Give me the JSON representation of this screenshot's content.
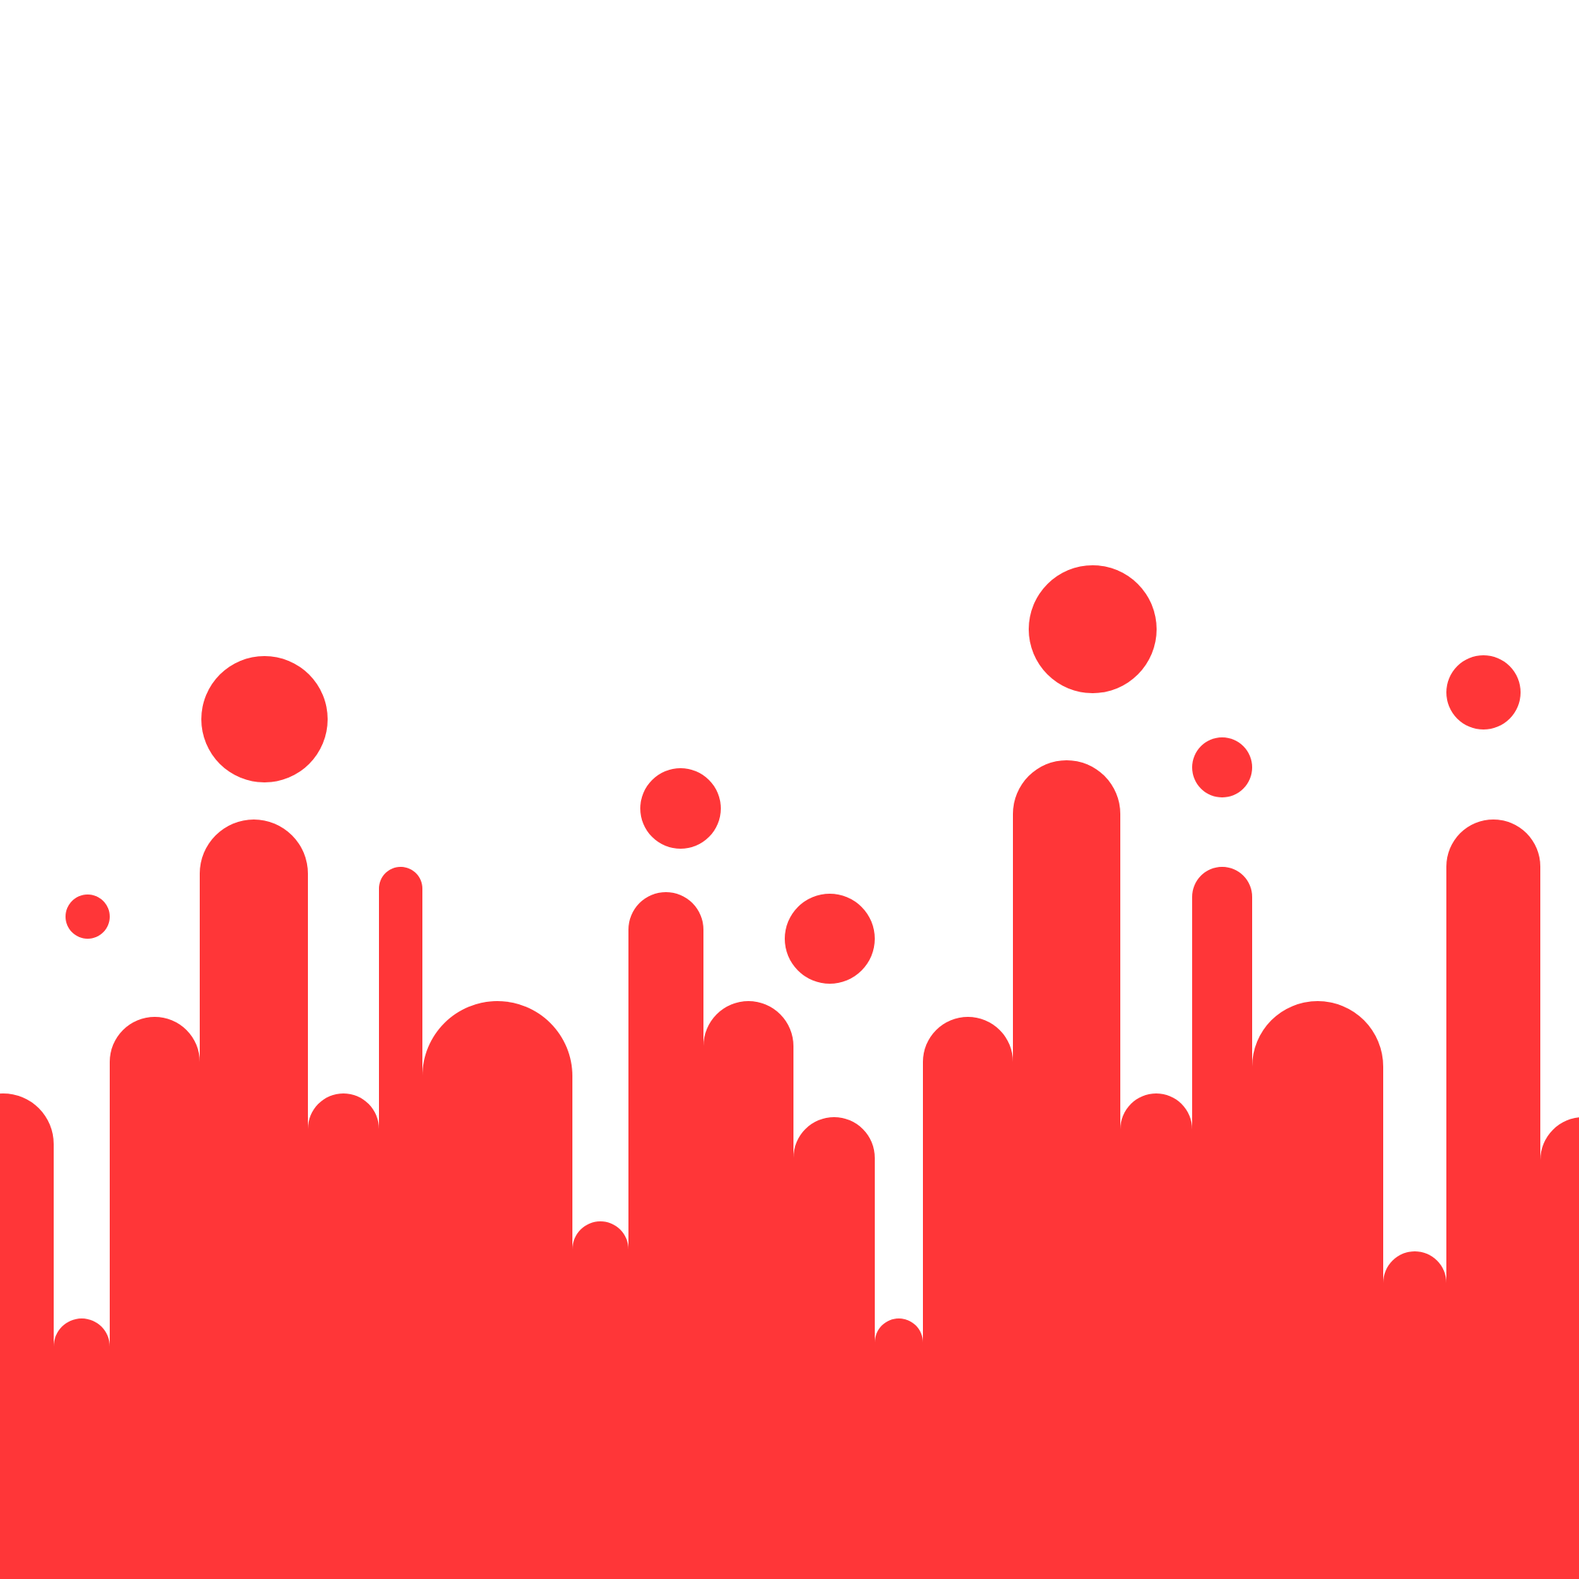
{
  "background_color": "#ffffff",
  "fill_color": "#ff3638"
}
